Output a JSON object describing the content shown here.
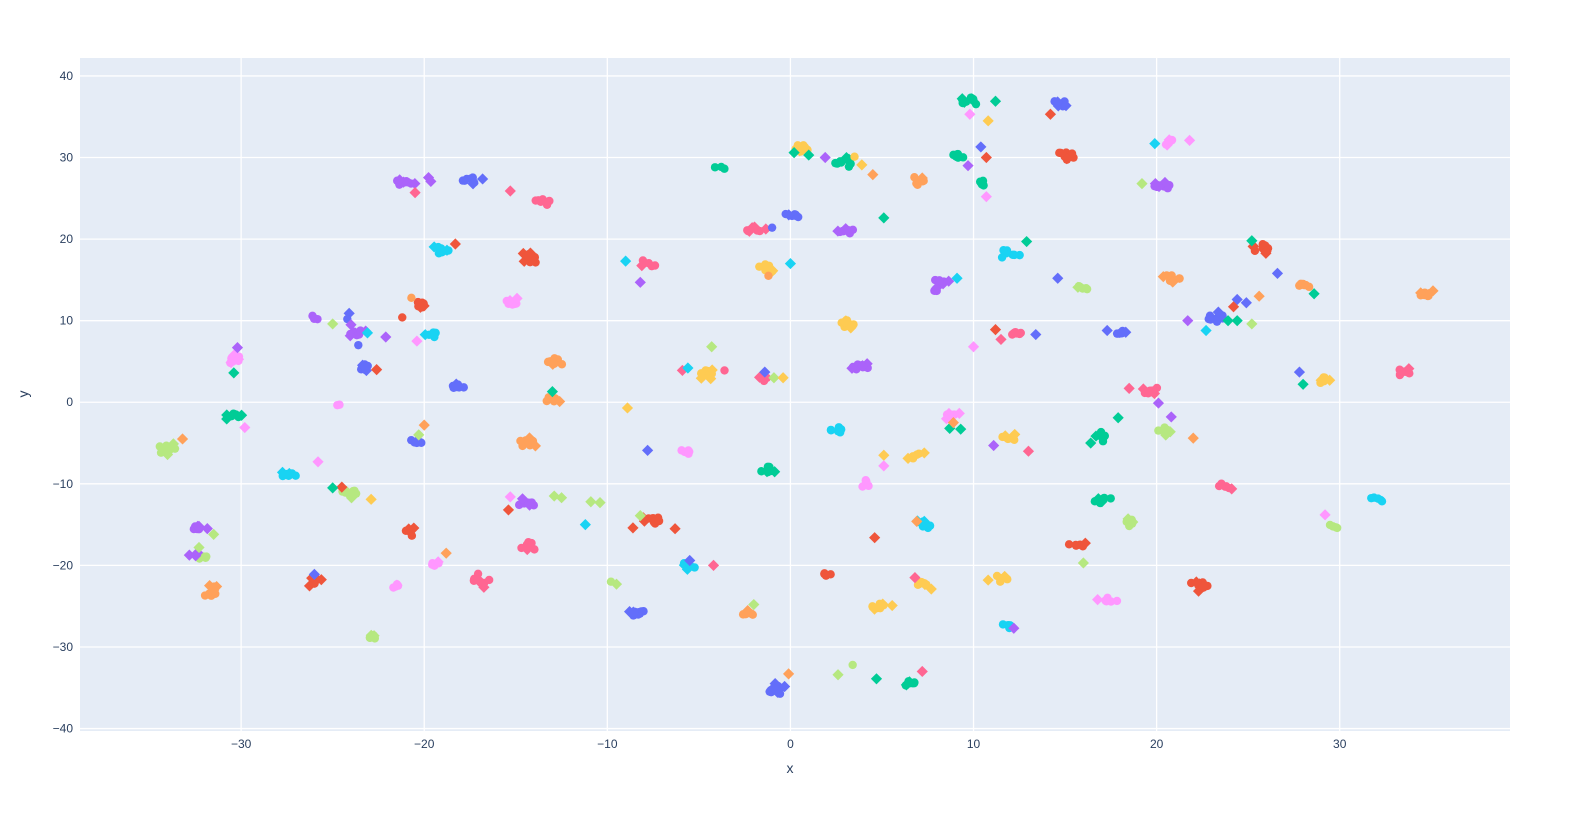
{
  "chart_data": {
    "type": "scatter",
    "title": "",
    "xlabel": "x",
    "ylabel": "y",
    "x_range": [
      -38.8,
      39.3
    ],
    "y_range": [
      -40.3,
      42.2
    ],
    "x_ticks": [
      -30,
      -20,
      -10,
      0,
      10,
      20,
      30
    ],
    "y_ticks": [
      -40,
      -30,
      -20,
      -10,
      0,
      10,
      20,
      30,
      40
    ],
    "grid": true,
    "legend": false,
    "plot_bgcolor": "#E5ECF6",
    "grid_color": "#FFFFFF",
    "tick_color": "#2a3f5f",
    "tick_font_size": 12,
    "palette": [
      "#636EFA",
      "#EF553B",
      "#00CC96",
      "#AB63FA",
      "#FFA15A",
      "#19D3F3",
      "#FF6692",
      "#B6E880",
      "#FF97FF",
      "#FECB52"
    ],
    "marker_symbols": [
      "circle",
      "diamond"
    ],
    "marker": {
      "circle_radius": 4.2,
      "diamond_radius": 5.6
    },
    "cluster_format": "[center_x, center_y, palette_index, n_circles, n_diamonds, spread_x_px, spread_y_px]",
    "clusters": [
      [
        9.9,
        36.8,
        2,
        9,
        3,
        10,
        5
      ],
      [
        14.8,
        36.6,
        0,
        7,
        3,
        10,
        4
      ],
      [
        0.6,
        31.2,
        9,
        7,
        1,
        9,
        4
      ],
      [
        20.7,
        32.0,
        8,
        6,
        2,
        9,
        4
      ],
      [
        2.9,
        29.4,
        2,
        8,
        2,
        10,
        6
      ],
      [
        9.1,
        30.3,
        2,
        6,
        0,
        8,
        5
      ],
      [
        15.1,
        30.2,
        1,
        9,
        1,
        11,
        5
      ],
      [
        -3.8,
        28.9,
        2,
        3,
        0,
        6,
        3
      ],
      [
        -21.0,
        26.9,
        3,
        7,
        3,
        11,
        4
      ],
      [
        -19.8,
        27.2,
        3,
        0,
        2,
        5,
        2
      ],
      [
        -17.5,
        27.2,
        0,
        7,
        2,
        11,
        4
      ],
      [
        -13.5,
        24.6,
        6,
        7,
        0,
        9,
        4
      ],
      [
        20.3,
        26.4,
        3,
        7,
        3,
        10,
        4
      ],
      [
        7.0,
        27.1,
        4,
        6,
        1,
        7,
        6
      ],
      [
        10.5,
        26.8,
        2,
        5,
        0,
        6,
        4
      ],
      [
        0.0,
        22.9,
        0,
        7,
        1,
        10,
        4
      ],
      [
        -1.9,
        21.0,
        6,
        4,
        4,
        9,
        6
      ],
      [
        3.1,
        21.0,
        3,
        7,
        2,
        10,
        4
      ],
      [
        12.0,
        18.3,
        5,
        8,
        0,
        10,
        5
      ],
      [
        -19.1,
        18.6,
        5,
        7,
        2,
        10,
        4
      ],
      [
        -14.1,
        17.4,
        1,
        8,
        4,
        12,
        7
      ],
      [
        -7.7,
        17.0,
        6,
        5,
        1,
        9,
        4
      ],
      [
        -1.4,
        16.4,
        9,
        7,
        2,
        9,
        6
      ],
      [
        25.7,
        18.8,
        1,
        5,
        4,
        9,
        7
      ],
      [
        15.9,
        14.2,
        7,
        5,
        1,
        8,
        4
      ],
      [
        8.2,
        14.4,
        3,
        7,
        3,
        9,
        7
      ],
      [
        20.9,
        15.3,
        4,
        7,
        2,
        10,
        5
      ],
      [
        28.0,
        14.2,
        4,
        6,
        0,
        10,
        4
      ],
      [
        34.6,
        13.2,
        4,
        8,
        2,
        11,
        4
      ],
      [
        -15.2,
        12.2,
        8,
        6,
        2,
        10,
        4
      ],
      [
        -20.2,
        12.0,
        1,
        7,
        2,
        10,
        4
      ],
      [
        -26.0,
        10.5,
        3,
        4,
        0,
        7,
        4
      ],
      [
        -23.6,
        8.5,
        3,
        5,
        2,
        9,
        4
      ],
      [
        -30.4,
        5.3,
        8,
        6,
        3,
        10,
        6
      ],
      [
        -19.5,
        8.3,
        5,
        5,
        1,
        8,
        3
      ],
      [
        18.1,
        8.7,
        0,
        6,
        1,
        9,
        4
      ],
      [
        12.4,
        8.4,
        6,
        6,
        0,
        10,
        4
      ],
      [
        3.0,
        9.5,
        9,
        8,
        3,
        11,
        5
      ],
      [
        -23.3,
        4.3,
        0,
        5,
        2,
        8,
        4
      ],
      [
        -4.6,
        3.5,
        9,
        7,
        3,
        11,
        5
      ],
      [
        -1.5,
        2.9,
        6,
        5,
        1,
        8,
        3
      ],
      [
        3.9,
        4.3,
        3,
        8,
        3,
        11,
        5
      ],
      [
        29.1,
        2.8,
        9,
        6,
        2,
        9,
        4
      ],
      [
        33.6,
        3.7,
        6,
        7,
        2,
        10,
        4
      ],
      [
        19.7,
        1.3,
        6,
        7,
        2,
        10,
        4
      ],
      [
        -30.4,
        -1.8,
        2,
        6,
        3,
        8,
        5
      ],
      [
        -24.6,
        -0.2,
        8,
        2,
        0,
        5,
        3
      ],
      [
        -34.0,
        -5.7,
        7,
        7,
        3,
        11,
        5
      ],
      [
        -20.5,
        -4.8,
        0,
        5,
        0,
        8,
        4
      ],
      [
        -13.1,
        0.2,
        4,
        6,
        1,
        9,
        5
      ],
      [
        8.7,
        -1.6,
        8,
        6,
        3,
        10,
        5
      ],
      [
        2.7,
        -3.3,
        5,
        7,
        0,
        10,
        4
      ],
      [
        11.9,
        -4.4,
        9,
        5,
        2,
        9,
        4
      ],
      [
        17.0,
        -4.2,
        2,
        6,
        1,
        8,
        5
      ],
      [
        20.5,
        -3.5,
        7,
        6,
        3,
        10,
        5
      ],
      [
        -14.4,
        -5.1,
        4,
        6,
        3,
        9,
        6
      ],
      [
        -27.4,
        -8.9,
        5,
        6,
        2,
        10,
        4
      ],
      [
        -5.7,
        -6.1,
        8,
        5,
        0,
        9,
        3
      ],
      [
        -1.3,
        -8.3,
        2,
        5,
        2,
        8,
        5
      ],
      [
        6.8,
        -6.7,
        9,
        5,
        2,
        8,
        4
      ],
      [
        4.1,
        -9.9,
        8,
        5,
        0,
        5,
        7
      ],
      [
        -23.9,
        -11.1,
        7,
        6,
        3,
        11,
        4
      ],
      [
        23.8,
        -10.3,
        6,
        5,
        1,
        9,
        3
      ],
      [
        32.1,
        -11.8,
        5,
        5,
        0,
        8,
        3
      ],
      [
        17.0,
        -12.0,
        2,
        6,
        2,
        11,
        4
      ],
      [
        -14.5,
        -12.3,
        3,
        7,
        2,
        10,
        4
      ],
      [
        18.6,
        -14.7,
        7,
        5,
        2,
        8,
        6
      ],
      [
        29.7,
        -15.0,
        7,
        4,
        0,
        6,
        5
      ],
      [
        7.2,
        -15.0,
        5,
        7,
        2,
        10,
        6
      ],
      [
        -7.5,
        -14.3,
        1,
        6,
        2,
        9,
        5
      ],
      [
        -32.4,
        -15.5,
        3,
        6,
        3,
        10,
        5
      ],
      [
        -32.0,
        -19.1,
        7,
        4,
        0,
        7,
        3
      ],
      [
        -32.7,
        -18.8,
        3,
        0,
        3,
        4,
        5
      ],
      [
        -14.4,
        -17.6,
        6,
        6,
        1,
        9,
        5
      ],
      [
        15.6,
        -17.7,
        1,
        6,
        1,
        10,
        5
      ],
      [
        -16.9,
        -21.8,
        6,
        7,
        3,
        12,
        8
      ],
      [
        -19.3,
        -19.8,
        8,
        4,
        1,
        7,
        4
      ],
      [
        1.9,
        -21.1,
        1,
        4,
        0,
        8,
        3
      ],
      [
        11.5,
        -21.6,
        9,
        5,
        1,
        8,
        4
      ],
      [
        7.2,
        -22.2,
        9,
        5,
        2,
        8,
        5
      ],
      [
        -26.0,
        -21.9,
        1,
        7,
        3,
        11,
        5
      ],
      [
        -21.6,
        -22.4,
        8,
        3,
        1,
        7,
        3
      ],
      [
        -31.6,
        -23.1,
        4,
        7,
        3,
        10,
        6
      ],
      [
        4.9,
        -24.9,
        9,
        6,
        3,
        11,
        4
      ],
      [
        17.4,
        -24.3,
        8,
        6,
        1,
        11,
        4
      ],
      [
        -5.6,
        -20.1,
        5,
        5,
        3,
        11,
        4
      ],
      [
        -8.5,
        -25.7,
        0,
        7,
        2,
        10,
        5
      ],
      [
        -2.3,
        -25.9,
        4,
        5,
        1,
        7,
        5
      ],
      [
        11.9,
        -27.4,
        5,
        5,
        0,
        7,
        4
      ],
      [
        -22.8,
        -28.6,
        7,
        6,
        2,
        10,
        4
      ],
      [
        6.6,
        -34.4,
        2,
        6,
        2,
        10,
        4
      ],
      [
        -0.7,
        -35.3,
        0,
        8,
        4,
        12,
        5
      ],
      [
        22.4,
        -22.5,
        1,
        8,
        4,
        12,
        6
      ],
      [
        -20.9,
        -15.9,
        1,
        5,
        2,
        8,
        5
      ],
      [
        -18.2,
        2.2,
        0,
        6,
        2,
        9,
        5
      ],
      [
        -12.9,
        5.0,
        4,
        7,
        1,
        10,
        5
      ],
      [
        23.2,
        10.4,
        0,
        8,
        2,
        10,
        6
      ]
    ],
    "point_format": "[x, y, palette_index, symbol_index(0=circle,1=diamond)]",
    "points": [
      [
        9.8,
        35.3,
        8,
        1
      ],
      [
        11.2,
        36.9,
        2,
        1
      ],
      [
        14.2,
        35.3,
        1,
        1
      ],
      [
        10.8,
        34.5,
        9,
        1
      ],
      [
        19.9,
        31.7,
        5,
        1
      ],
      [
        21.8,
        32.1,
        8,
        1
      ],
      [
        0.2,
        30.6,
        2,
        1
      ],
      [
        1.0,
        30.3,
        2,
        1
      ],
      [
        1.9,
        30.0,
        3,
        1
      ],
      [
        3.5,
        30.1,
        9,
        0
      ],
      [
        3.9,
        29.1,
        9,
        1
      ],
      [
        4.5,
        27.9,
        4,
        1
      ],
      [
        10.4,
        31.3,
        0,
        1
      ],
      [
        10.7,
        30.0,
        1,
        1
      ],
      [
        9.7,
        29.0,
        3,
        1
      ],
      [
        -15.3,
        25.9,
        6,
        1
      ],
      [
        -20.5,
        25.7,
        6,
        1
      ],
      [
        19.2,
        26.8,
        7,
        1
      ],
      [
        10.7,
        25.2,
        8,
        1
      ],
      [
        5.1,
        22.6,
        2,
        1
      ],
      [
        -1.0,
        21.4,
        0,
        0
      ],
      [
        12.9,
        19.7,
        2,
        1
      ],
      [
        -18.3,
        19.4,
        1,
        1
      ],
      [
        25.2,
        19.8,
        2,
        1
      ],
      [
        -9.0,
        17.3,
        5,
        1
      ],
      [
        -8.2,
        14.7,
        3,
        1
      ],
      [
        0.0,
        17.0,
        5,
        1
      ],
      [
        -1.2,
        15.5,
        4,
        0
      ],
      [
        9.1,
        15.2,
        5,
        1
      ],
      [
        14.6,
        15.2,
        0,
        1
      ],
      [
        26.6,
        15.8,
        0,
        1
      ],
      [
        28.6,
        13.3,
        2,
        1
      ],
      [
        25.6,
        13.0,
        4,
        1
      ],
      [
        -21.2,
        10.4,
        1,
        0
      ],
      [
        -20.7,
        12.8,
        4,
        0
      ],
      [
        -25.0,
        9.6,
        7,
        1
      ],
      [
        -24.1,
        10.9,
        0,
        1
      ],
      [
        -24.2,
        10.2,
        0,
        0
      ],
      [
        -24.0,
        9.5,
        3,
        1
      ],
      [
        -22.1,
        8.0,
        3,
        1
      ],
      [
        -23.1,
        8.5,
        5,
        1
      ],
      [
        -23.6,
        7.0,
        0,
        0
      ],
      [
        -30.2,
        6.7,
        3,
        1
      ],
      [
        -30.4,
        3.6,
        2,
        1
      ],
      [
        -20.4,
        7.5,
        8,
        1
      ],
      [
        17.3,
        8.8,
        0,
        1
      ],
      [
        11.2,
        8.9,
        1,
        1
      ],
      [
        11.5,
        7.7,
        6,
        1
      ],
      [
        13.4,
        8.3,
        0,
        1
      ],
      [
        10.0,
        6.8,
        8,
        1
      ],
      [
        -22.6,
        4.0,
        1,
        1
      ],
      [
        -4.3,
        6.8,
        7,
        1
      ],
      [
        -5.9,
        3.9,
        6,
        1
      ],
      [
        -5.6,
        4.2,
        5,
        1
      ],
      [
        -3.6,
        3.9,
        6,
        0
      ],
      [
        -0.9,
        3.0,
        7,
        1
      ],
      [
        -1.4,
        3.7,
        0,
        1
      ],
      [
        -0.4,
        3.0,
        9,
        1
      ],
      [
        27.8,
        3.7,
        0,
        1
      ],
      [
        28.0,
        2.2,
        2,
        1
      ],
      [
        18.5,
        1.7,
        6,
        1
      ],
      [
        20.1,
        -0.1,
        3,
        1
      ],
      [
        20.8,
        -1.8,
        3,
        1
      ],
      [
        17.9,
        -1.9,
        2,
        1
      ],
      [
        -29.8,
        -3.1,
        8,
        1
      ],
      [
        -33.2,
        -4.5,
        4,
        1
      ],
      [
        -20.3,
        -4.0,
        7,
        1
      ],
      [
        -20.0,
        -2.8,
        4,
        1
      ],
      [
        -13.0,
        1.3,
        2,
        1
      ],
      [
        -8.9,
        -0.7,
        9,
        1
      ],
      [
        8.7,
        -3.2,
        2,
        1
      ],
      [
        9.3,
        -3.3,
        2,
        1
      ],
      [
        8.9,
        -2.5,
        4,
        1
      ],
      [
        11.1,
        -5.3,
        3,
        1
      ],
      [
        13.0,
        -6.0,
        6,
        1
      ],
      [
        16.4,
        -5.0,
        2,
        1
      ],
      [
        22.0,
        -4.4,
        4,
        1
      ],
      [
        -25.8,
        -7.3,
        8,
        1
      ],
      [
        -7.8,
        -5.9,
        0,
        1
      ],
      [
        5.1,
        -6.5,
        9,
        1
      ],
      [
        5.1,
        -7.8,
        8,
        1
      ],
      [
        -24.5,
        -10.4,
        1,
        1
      ],
      [
        -25.0,
        -10.5,
        2,
        1
      ],
      [
        -22.9,
        -11.9,
        9,
        1
      ],
      [
        -15.3,
        -11.6,
        8,
        1
      ],
      [
        -15.4,
        -13.2,
        1,
        1
      ],
      [
        -12.9,
        -11.5,
        7,
        1
      ],
      [
        -12.5,
        -11.7,
        7,
        1
      ],
      [
        -10.9,
        -12.2,
        7,
        1
      ],
      [
        -10.4,
        -12.3,
        7,
        1
      ],
      [
        -11.2,
        -15.0,
        5,
        1
      ],
      [
        29.2,
        -13.8,
        8,
        1
      ],
      [
        6.9,
        -14.6,
        4,
        1
      ],
      [
        -8.2,
        -13.9,
        7,
        1
      ],
      [
        -8.6,
        -15.4,
        1,
        1
      ],
      [
        -6.3,
        -15.5,
        1,
        1
      ],
      [
        -31.5,
        -16.2,
        7,
        1
      ],
      [
        -32.3,
        -17.8,
        7,
        1
      ],
      [
        4.6,
        -16.6,
        1,
        1
      ],
      [
        16.0,
        -19.7,
        7,
        1
      ],
      [
        -18.8,
        -18.5,
        4,
        1
      ],
      [
        -26.0,
        -21.1,
        0,
        1
      ],
      [
        6.8,
        -21.5,
        6,
        1
      ],
      [
        10.8,
        -21.8,
        9,
        1
      ],
      [
        -5.5,
        -19.4,
        0,
        1
      ],
      [
        -4.2,
        -20.0,
        6,
        1
      ],
      [
        -9.8,
        -22.0,
        7,
        0
      ],
      [
        -9.5,
        -22.3,
        7,
        1
      ],
      [
        -2.0,
        -24.8,
        7,
        1
      ],
      [
        12.2,
        -27.7,
        3,
        1
      ],
      [
        3.4,
        -32.2,
        7,
        0
      ],
      [
        2.6,
        -33.4,
        7,
        1
      ],
      [
        4.7,
        -33.9,
        2,
        1
      ],
      [
        7.2,
        -33.0,
        6,
        1
      ],
      [
        -0.1,
        -33.3,
        4,
        1
      ],
      [
        24.4,
        12.6,
        0,
        1
      ],
      [
        24.9,
        12.2,
        0,
        1
      ],
      [
        24.2,
        11.7,
        1,
        1
      ],
      [
        23.9,
        10.0,
        2,
        1
      ],
      [
        24.4,
        10.0,
        2,
        1
      ],
      [
        25.2,
        9.6,
        7,
        1
      ],
      [
        21.7,
        10.0,
        3,
        1
      ],
      [
        22.7,
        8.8,
        5,
        1
      ]
    ]
  }
}
